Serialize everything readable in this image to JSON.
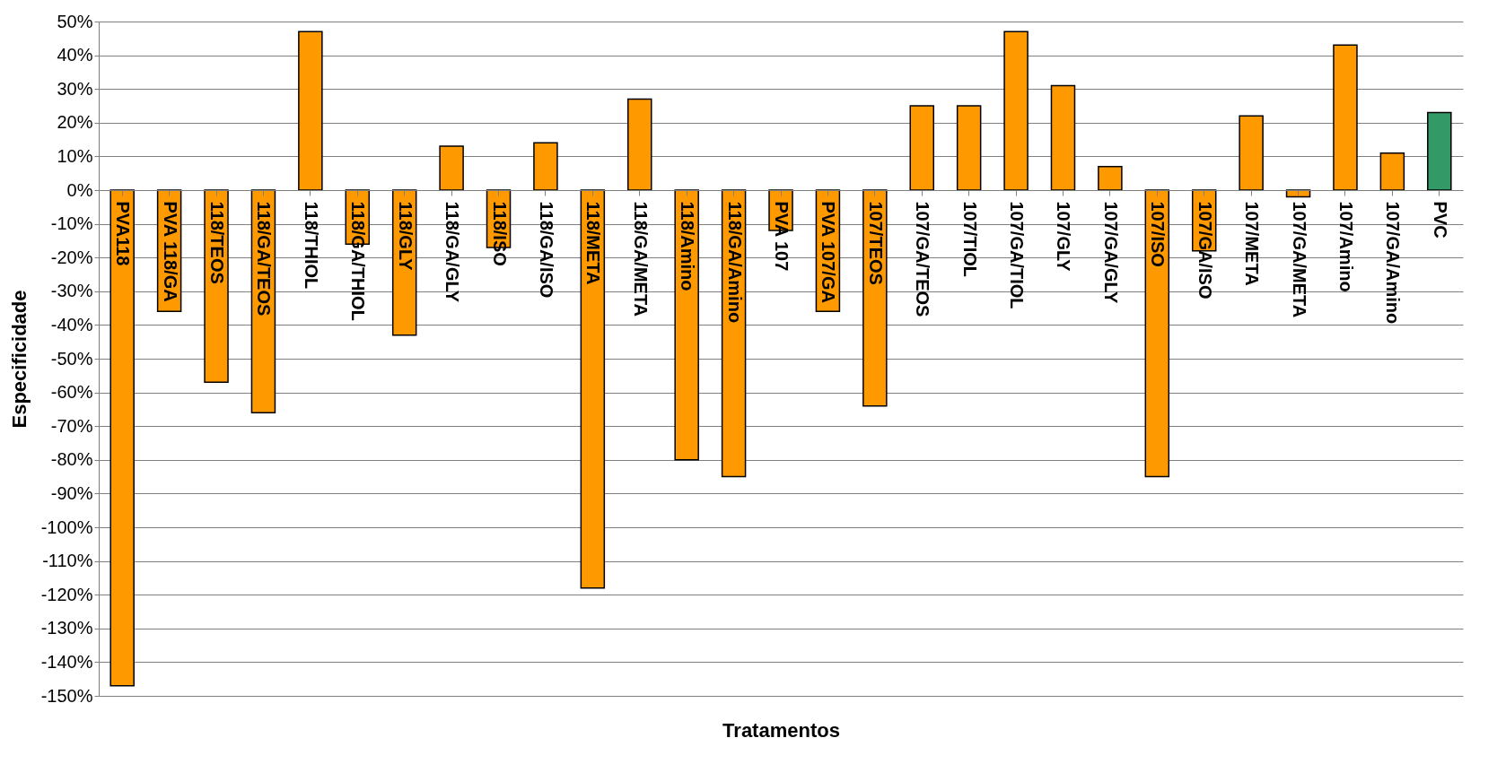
{
  "chart_data": {
    "type": "bar",
    "xlabel": "Tratamentos",
    "ylabel": "Especificidade",
    "categories": [
      "PVA118",
      "PVA 118/GA",
      "118/TEOS",
      "118/GA/TEOS",
      "118/THIOL",
      "118/GA/THIOL",
      "118/GLY",
      "118/GA/GLY",
      "118/ISO",
      "118/GA/ISO",
      "118/META",
      "118/GA/META",
      "118/Amino",
      "118/GA/Amino",
      "PVA 107",
      "PVA 107/GA",
      "107/TEOS",
      "107/GA/TEOS",
      "107/TIOL",
      "107/GA/TIOL",
      "107/GLY",
      "107/GA/GLY",
      "107/ISO",
      "107/GA/ISO",
      "107/META",
      "107/GA/META",
      "107/Amino",
      "107/GA/Amino",
      "PVC"
    ],
    "values": [
      -147,
      -36,
      -57,
      -66,
      47,
      -16,
      -43,
      13,
      -17,
      14,
      -118,
      27,
      -80,
      -85,
      -12,
      -36,
      -64,
      25,
      25,
      47,
      31,
      7,
      -85,
      -18,
      22,
      -2,
      43,
      11,
      23
    ],
    "colors": [
      "#ff9900",
      "#ff9900",
      "#ff9900",
      "#ff9900",
      "#ff9900",
      "#ff9900",
      "#ff9900",
      "#ff9900",
      "#ff9900",
      "#ff9900",
      "#ff9900",
      "#ff9900",
      "#ff9900",
      "#ff9900",
      "#ff9900",
      "#ff9900",
      "#ff9900",
      "#ff9900",
      "#ff9900",
      "#ff9900",
      "#ff9900",
      "#ff9900",
      "#ff9900",
      "#ff9900",
      "#ff9900",
      "#ff9900",
      "#ff9900",
      "#ff9900",
      "#339966"
    ],
    "ylim": [
      -150,
      50
    ],
    "yticks": [
      {
        "value": 50,
        "label": "50%"
      },
      {
        "value": 40,
        "label": "40%"
      },
      {
        "value": 30,
        "label": "30%"
      },
      {
        "value": 20,
        "label": "20%"
      },
      {
        "value": 10,
        "label": "10%"
      },
      {
        "value": 0,
        "label": "0%"
      },
      {
        "value": -10,
        "label": "-10%"
      },
      {
        "value": -20,
        "label": "-20%"
      },
      {
        "value": -30,
        "label": "-30%"
      },
      {
        "value": -40,
        "label": "-40%"
      },
      {
        "value": -50,
        "label": "-50%"
      },
      {
        "value": -60,
        "label": "-60%"
      },
      {
        "value": -70,
        "label": "-70%"
      },
      {
        "value": -80,
        "label": "-80%"
      },
      {
        "value": -90,
        "label": "-90%"
      },
      {
        "value": -100,
        "label": "-100%"
      },
      {
        "value": -110,
        "label": "-110%"
      },
      {
        "value": -120,
        "label": "-120%"
      },
      {
        "value": -130,
        "label": "-130%"
      },
      {
        "value": -140,
        "label": "-140%"
      },
      {
        "value": -150,
        "label": "-150%"
      }
    ],
    "grid": "y",
    "legend": false
  }
}
